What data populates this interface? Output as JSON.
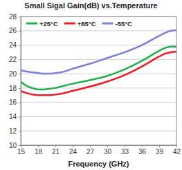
{
  "chart_data": {
    "type": "line",
    "title": "Small Sigal Gain(dB) vs.Temperature",
    "x_label": "Frequency (GHz)",
    "x": [
      15,
      16,
      17,
      18,
      19,
      20,
      21,
      22,
      24,
      27,
      30,
      33,
      36,
      39,
      40,
      41,
      42
    ],
    "series": [
      {
        "name": "+25°C",
        "color": "#1fb04c",
        "line_style": "solid",
        "values": [
          18.9,
          18.3,
          18.0,
          17.8,
          17.8,
          17.9,
          18.0,
          18.2,
          18.6,
          19.1,
          19.7,
          20.6,
          21.8,
          23.2,
          23.6,
          23.8,
          23.8
        ]
      },
      {
        "name": "+85°C",
        "color": "#ee1c24",
        "line_style": "solid",
        "values": [
          17.6,
          17.3,
          17.1,
          17.0,
          17.0,
          17.0,
          17.1,
          17.2,
          17.6,
          18.2,
          18.9,
          19.8,
          21.0,
          22.4,
          22.8,
          23.0,
          23.1
        ]
      },
      {
        "name": "-55°C",
        "color": "#7a7fd8",
        "line_style": "solid",
        "values": [
          20.5,
          20.3,
          20.2,
          20.1,
          20.0,
          20.0,
          20.1,
          20.2,
          20.7,
          21.4,
          22.2,
          23.0,
          24.0,
          25.3,
          25.7,
          26.0,
          26.1
        ]
      }
    ],
    "xlim": [
      15,
      42
    ],
    "xticks": [
      15,
      18,
      21,
      24,
      27,
      30,
      33,
      36,
      39,
      42
    ],
    "ylim": [
      10,
      28
    ],
    "yticks": [
      10,
      12,
      14,
      16,
      18,
      20,
      22,
      24,
      26,
      28
    ],
    "grid": true,
    "legend": "upper left"
  }
}
